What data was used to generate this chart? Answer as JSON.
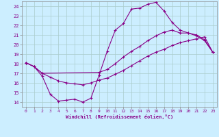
{
  "xlabel": "Windchill (Refroidissement éolien,°C)",
  "line_color": "#880088",
  "bg_color": "#cceeff",
  "grid_color": "#aacccc",
  "xlim": [
    -0.5,
    23.5
  ],
  "ylim": [
    13.5,
    24.5
  ],
  "xticks": [
    0,
    1,
    2,
    3,
    4,
    5,
    6,
    7,
    8,
    9,
    10,
    11,
    12,
    13,
    14,
    15,
    16,
    17,
    18,
    19,
    20,
    21,
    22,
    23
  ],
  "yticks": [
    14,
    15,
    16,
    17,
    18,
    19,
    20,
    21,
    22,
    23,
    24
  ],
  "curve1_x": [
    0,
    1,
    2,
    3,
    4,
    5,
    6,
    7,
    8,
    9,
    10,
    11,
    12,
    13,
    14,
    15,
    16,
    17,
    18,
    19,
    20,
    21,
    22,
    23
  ],
  "curve1_y": [
    18.1,
    17.7,
    16.7,
    14.8,
    14.1,
    14.2,
    14.3,
    14.0,
    14.4,
    16.8,
    19.3,
    21.5,
    22.2,
    23.7,
    23.8,
    24.2,
    24.4,
    23.5,
    22.3,
    21.5,
    21.2,
    20.9,
    20.4,
    19.2
  ],
  "curve2_x": [
    0,
    1,
    2,
    9,
    10,
    11,
    12,
    13,
    14,
    15,
    16,
    17,
    18,
    19,
    20,
    21,
    22,
    23
  ],
  "curve2_y": [
    18.1,
    17.7,
    17.0,
    17.1,
    17.4,
    18.0,
    18.7,
    19.3,
    19.8,
    20.4,
    20.9,
    21.3,
    21.5,
    21.2,
    21.2,
    21.0,
    20.5,
    19.2
  ],
  "curve3_x": [
    0,
    1,
    2,
    3,
    4,
    5,
    6,
    7,
    8,
    9,
    10,
    11,
    12,
    13,
    14,
    15,
    16,
    17,
    18,
    19,
    20,
    21,
    22,
    23
  ],
  "curve3_y": [
    18.1,
    17.7,
    17.0,
    16.6,
    16.2,
    16.0,
    15.9,
    15.8,
    16.0,
    16.3,
    16.5,
    16.9,
    17.3,
    17.8,
    18.3,
    18.8,
    19.2,
    19.5,
    19.9,
    20.2,
    20.4,
    20.6,
    20.8,
    19.2
  ]
}
